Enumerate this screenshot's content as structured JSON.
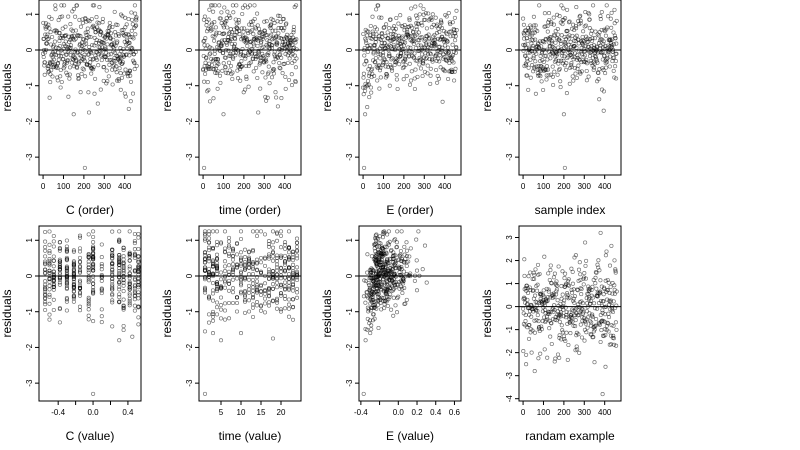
{
  "chart_data": [
    {
      "type": "scatter",
      "title": "",
      "xlabel": "C (order)",
      "ylabel": "residuals",
      "xlim": [
        -20,
        480
      ],
      "ylim": [
        -3.5,
        1.4
      ],
      "xticks": [
        {
          "v": 0,
          "label": "0"
        },
        {
          "v": 100,
          "label": "100"
        },
        {
          "v": 200,
          "label": "200"
        },
        {
          "v": 300,
          "label": "300"
        },
        {
          "v": 400,
          "label": "400"
        }
      ],
      "yticks": [
        {
          "v": -3,
          "label": "-3"
        },
        {
          "v": -2,
          "label": "-2"
        },
        {
          "v": -1,
          "label": "-1"
        },
        {
          "v": 0,
          "label": "0"
        },
        {
          "v": 1,
          "label": "1"
        }
      ],
      "hline": 0,
      "n": 460,
      "x_kind": "index",
      "y_sd": 0.55,
      "seed": 11,
      "outliers": [
        [
          205,
          -3.3
        ],
        [
          150,
          -1.8
        ],
        [
          225,
          -1.75
        ],
        [
          420,
          -1.65
        ]
      ]
    },
    {
      "type": "scatter",
      "title": "",
      "xlabel": "time (order)",
      "ylabel": "residuals",
      "xlim": [
        -20,
        480
      ],
      "ylim": [
        -3.5,
        1.4
      ],
      "xticks": [
        {
          "v": 0,
          "label": "0"
        },
        {
          "v": 100,
          "label": "100"
        },
        {
          "v": 200,
          "label": "200"
        },
        {
          "v": 300,
          "label": "300"
        },
        {
          "v": 400,
          "label": "400"
        }
      ],
      "yticks": [
        {
          "v": -3,
          "label": "-3"
        },
        {
          "v": -2,
          "label": "-2"
        },
        {
          "v": -1,
          "label": "-1"
        },
        {
          "v": 0,
          "label": "0"
        },
        {
          "v": 1,
          "label": "1"
        }
      ],
      "hline": 0,
      "n": 460,
      "x_kind": "index",
      "y_sd": 0.55,
      "seed": 23,
      "outliers": [
        [
          5,
          -3.3
        ],
        [
          100,
          -1.8
        ],
        [
          270,
          -1.75
        ]
      ]
    },
    {
      "type": "scatter",
      "title": "",
      "xlabel": "E (order)",
      "ylabel": "residuals",
      "xlim": [
        -20,
        480
      ],
      "ylim": [
        -3.5,
        1.4
      ],
      "xticks": [
        {
          "v": 0,
          "label": "0"
        },
        {
          "v": 100,
          "label": "100"
        },
        {
          "v": 200,
          "label": "200"
        },
        {
          "v": 300,
          "label": "300"
        },
        {
          "v": 400,
          "label": "400"
        }
      ],
      "yticks": [
        {
          "v": -3,
          "label": "-3"
        },
        {
          "v": -2,
          "label": "-2"
        },
        {
          "v": -1,
          "label": "-1"
        },
        {
          "v": 0,
          "label": "0"
        },
        {
          "v": 1,
          "label": "1"
        }
      ],
      "hline": 0,
      "n": 460,
      "x_kind": "index_trend",
      "y_sd": 0.5,
      "seed": 37,
      "outliers": [
        [
          5,
          -3.3
        ],
        [
          10,
          -1.8
        ],
        [
          20,
          -1.6
        ]
      ]
    },
    {
      "type": "scatter",
      "title": "",
      "xlabel": "sample index",
      "ylabel": "residuals",
      "xlim": [
        -20,
        480
      ],
      "ylim": [
        -3.5,
        1.4
      ],
      "xticks": [
        {
          "v": 0,
          "label": "0"
        },
        {
          "v": 100,
          "label": "100"
        },
        {
          "v": 200,
          "label": "200"
        },
        {
          "v": 300,
          "label": "300"
        },
        {
          "v": 400,
          "label": "400"
        }
      ],
      "yticks": [
        {
          "v": -3,
          "label": "-3"
        },
        {
          "v": -2,
          "label": "-2"
        },
        {
          "v": -1,
          "label": "-1"
        },
        {
          "v": 0,
          "label": "0"
        },
        {
          "v": 1,
          "label": "1"
        }
      ],
      "hline": 0,
      "n": 460,
      "x_kind": "index",
      "y_sd": 0.5,
      "seed": 41,
      "outliers": [
        [
          205,
          -3.3
        ],
        [
          200,
          -1.8
        ],
        [
          395,
          -1.7
        ]
      ]
    },
    {
      "type": "scatter",
      "title": "",
      "xlabel": "C (value)",
      "ylabel": "residuals",
      "xlim": [
        -0.62,
        0.55
      ],
      "ylim": [
        -3.5,
        1.4
      ],
      "xticks": [
        {
          "v": -0.4,
          "label": "-0.4"
        },
        {
          "v": -0.2,
          "label": ""
        },
        {
          "v": 0.0,
          "label": "0.0"
        },
        {
          "v": 0.2,
          "label": ""
        },
        {
          "v": 0.4,
          "label": "0.4"
        }
      ],
      "yticks": [
        {
          "v": -3,
          "label": "-3"
        },
        {
          "v": -2,
          "label": "-2"
        },
        {
          "v": -1,
          "label": "-1"
        },
        {
          "v": 0,
          "label": "0"
        },
        {
          "v": 1,
          "label": "1"
        }
      ],
      "hline": 0,
      "n": 460,
      "x_kind": "levels",
      "y_sd": 0.55,
      "seed": 53,
      "levels": [
        -0.55,
        -0.5,
        -0.45,
        -0.38,
        -0.3,
        -0.22,
        -0.15,
        -0.05,
        0.0,
        0.1,
        0.22,
        0.3,
        0.35,
        0.42,
        0.48,
        0.52
      ],
      "outliers": [
        [
          0.0,
          -3.3
        ],
        [
          -0.38,
          -1.3
        ],
        [
          0.3,
          -1.8
        ],
        [
          0.45,
          -1.7
        ]
      ]
    },
    {
      "type": "scatter",
      "title": "",
      "xlabel": "time (value)",
      "ylabel": "residuals",
      "xlim": [
        -0.5,
        25
      ],
      "ylim": [
        -3.5,
        1.4
      ],
      "xticks": [
        {
          "v": 5,
          "label": "5"
        },
        {
          "v": 10,
          "label": "10"
        },
        {
          "v": 15,
          "label": "15"
        },
        {
          "v": 20,
          "label": "20"
        }
      ],
      "yticks": [
        {
          "v": -3,
          "label": "-3"
        },
        {
          "v": -2,
          "label": "-2"
        },
        {
          "v": -1,
          "label": "-1"
        },
        {
          "v": 0,
          "label": "0"
        },
        {
          "v": 1,
          "label": "1"
        }
      ],
      "hline": 0,
      "n": 460,
      "x_kind": "levels",
      "y_sd": 0.55,
      "seed": 67,
      "levels": [
        1,
        2,
        3,
        4,
        5,
        6,
        7,
        8,
        9,
        10,
        11,
        12,
        13,
        14,
        15,
        16,
        17,
        18,
        19,
        20,
        21,
        22,
        23,
        24
      ],
      "outliers": [
        [
          1,
          -3.3
        ],
        [
          5,
          -1.8
        ],
        [
          18,
          -1.75
        ]
      ]
    },
    {
      "type": "scatter",
      "title": "",
      "xlabel": "E (value)",
      "ylabel": "residuals",
      "xlim": [
        -0.42,
        0.67
      ],
      "ylim": [
        -3.5,
        1.4
      ],
      "xticks": [
        {
          "v": -0.4,
          "label": "-0.4"
        },
        {
          "v": -0.2,
          "label": ""
        },
        {
          "v": 0.0,
          "label": "0.0"
        },
        {
          "v": 0.2,
          "label": "0.2"
        },
        {
          "v": 0.4,
          "label": "0.4"
        },
        {
          "v": 0.6,
          "label": "0.6"
        }
      ],
      "yticks": [
        {
          "v": -3,
          "label": "-3"
        },
        {
          "v": -2,
          "label": "-2"
        },
        {
          "v": -1,
          "label": "-1"
        },
        {
          "v": 0,
          "label": "0"
        },
        {
          "v": 1,
          "label": "1"
        }
      ],
      "hline": 0,
      "n": 460,
      "x_kind": "skewed",
      "y_sd": 0.5,
      "seed": 79,
      "outliers": [
        [
          -0.37,
          -3.3
        ],
        [
          -0.35,
          -1.8
        ],
        [
          -0.3,
          -1.6
        ]
      ]
    },
    {
      "type": "scatter",
      "title": "",
      "xlabel": "randam example",
      "ylabel": "residuals",
      "xlim": [
        -20,
        480
      ],
      "ylim": [
        -4.1,
        3.5
      ],
      "xticks": [
        {
          "v": 0,
          "label": "0"
        },
        {
          "v": 100,
          "label": "100"
        },
        {
          "v": 200,
          "label": "200"
        },
        {
          "v": 300,
          "label": "300"
        },
        {
          "v": 400,
          "label": "400"
        }
      ],
      "yticks": [
        {
          "v": -4,
          "label": "-4"
        },
        {
          "v": -3,
          "label": "-3"
        },
        {
          "v": -2,
          "label": "-2"
        },
        {
          "v": -1,
          "label": "-1"
        },
        {
          "v": 0,
          "label": "0"
        },
        {
          "v": 1,
          "label": "1"
        },
        {
          "v": 2,
          "label": "2"
        },
        {
          "v": 3,
          "label": "3"
        }
      ],
      "hline": 0,
      "n": 460,
      "x_kind": "index",
      "y_sd": 1.0,
      "seed": 97,
      "outliers": [
        [
          390,
          -3.8
        ],
        [
          380,
          3.2
        ],
        [
          15,
          -2.5
        ]
      ]
    }
  ]
}
